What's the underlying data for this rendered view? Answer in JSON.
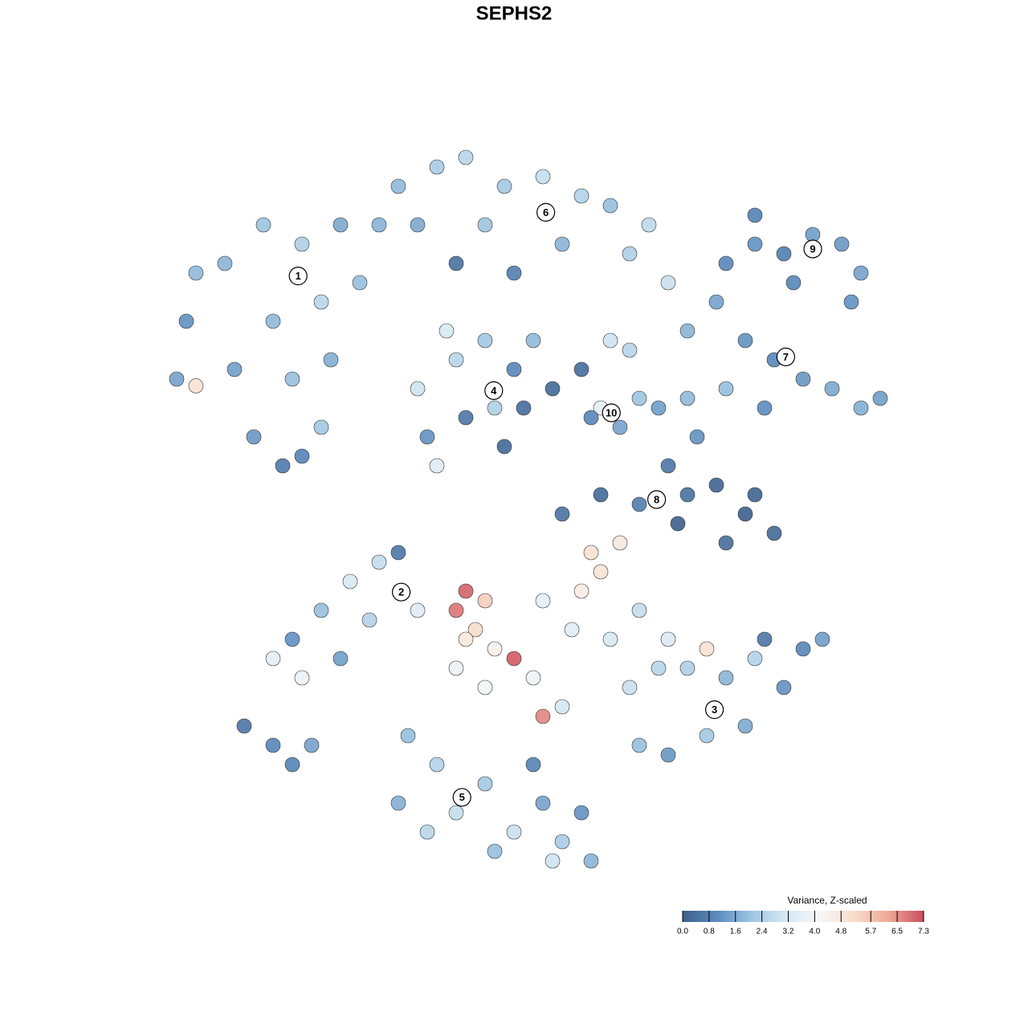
{
  "chart_data": {
    "type": "scatter",
    "title": "SEPHS2",
    "xlim": [
      -40,
      40
    ],
    "ylim": [
      -40,
      40
    ],
    "x": [
      -34,
      -30,
      -26,
      -22,
      -18,
      -20,
      -25,
      -29,
      -23,
      -19,
      -27,
      -22,
      -20,
      -35,
      -33,
      -16,
      -14,
      -24,
      -33,
      -12,
      -8,
      -5,
      -1,
      3,
      7,
      10,
      14,
      -10,
      -3,
      5,
      12,
      0,
      -6,
      16,
      -10,
      -6,
      -3,
      0,
      -2,
      -5,
      -9,
      -1,
      -8,
      1,
      -7,
      2,
      4,
      7,
      10,
      12,
      9,
      11,
      13,
      8,
      18,
      21,
      24,
      27,
      30,
      33,
      36,
      38,
      22,
      26,
      18,
      22,
      25,
      28,
      31,
      34,
      36,
      35,
      29,
      25,
      5,
      9,
      13,
      16,
      19,
      21,
      24,
      27,
      22,
      18,
      25,
      15,
      17,
      -14,
      -17,
      -20,
      -23,
      -25,
      -22,
      -18,
      -15,
      -12,
      -10,
      -28,
      -25,
      -23,
      -21,
      -5,
      -6,
      -4,
      -3,
      -5,
      -2,
      0,
      8,
      9,
      7,
      11,
      3,
      6,
      10,
      13,
      16,
      2,
      5,
      3,
      -3,
      -6,
      12,
      15,
      18,
      22,
      26,
      30,
      32,
      28,
      24,
      20,
      16,
      13,
      25,
      20,
      -11,
      -8,
      -12,
      -6,
      -3,
      0,
      3,
      5,
      -2,
      7,
      -9,
      2,
      8,
      4
    ],
    "y": [
      20,
      26,
      30,
      28,
      30,
      22,
      20,
      15,
      14,
      16,
      8,
      6,
      9,
      14,
      25,
      24,
      30,
      5,
      13.3,
      34,
      36,
      37,
      34,
      35,
      33,
      32,
      30,
      30,
      30,
      28,
      27,
      25,
      26,
      24,
      13,
      16,
      18,
      15,
      11,
      10,
      8,
      7,
      5,
      11,
      19,
      18,
      13,
      15,
      18,
      17,
      11,
      9,
      12,
      10,
      19,
      22,
      18,
      16,
      14,
      13,
      11,
      12,
      13,
      11,
      12,
      26,
      28,
      27,
      29,
      28,
      25,
      22,
      24,
      31,
      0,
      2,
      1,
      5,
      8,
      3,
      0,
      -2,
      -3,
      2,
      2,
      11,
      -1,
      -5,
      -7,
      -10,
      -13,
      -15,
      -17,
      -15,
      -11,
      -4,
      -10,
      -22,
      -24,
      -26,
      -24,
      -8,
      -10,
      -12,
      -9,
      -13,
      -14,
      -15,
      -4,
      -6,
      -8,
      -3,
      -9,
      -12,
      -13,
      -10,
      -13,
      -17,
      -20,
      -21,
      -18,
      -16,
      -18,
      -16,
      -16,
      -17,
      -13,
      -14,
      -13,
      -18,
      -22,
      -23,
      -25,
      -24,
      -15,
      -14,
      -23,
      -26,
      -30,
      -31,
      -28,
      -33,
      -30,
      -34,
      -35,
      -31,
      -33,
      -26,
      -36,
      -36
    ],
    "values": [
      1.2,
      1.8,
      2.1,
      2.4,
      1.6,
      2.6,
      1.9,
      1.4,
      2.0,
      1.7,
      1.3,
      0.9,
      2.2,
      1.5,
      1.9,
      2.0,
      1.8,
      0.7,
      5.0,
      1.9,
      2.3,
      2.6,
      2.2,
      2.8,
      2.5,
      2.0,
      2.7,
      1.6,
      2.1,
      1.8,
      2.4,
      0.8,
      0.5,
      2.9,
      3.0,
      2.6,
      2.2,
      1.0,
      2.4,
      0.6,
      1.2,
      0.3,
      3.4,
      0.4,
      3.2,
      1.9,
      0.3,
      0.4,
      3.0,
      2.6,
      3.6,
      1.5,
      2.1,
      1.0,
      1.8,
      1.5,
      1.2,
      1.0,
      1.3,
      1.6,
      1.7,
      1.4,
      2.0,
      1.1,
      1.9,
      1.0,
      1.2,
      0.8,
      1.4,
      1.3,
      1.5,
      1.2,
      1.0,
      0.9,
      0.5,
      0.3,
      0.8,
      0.6,
      1.2,
      0.2,
      0.1,
      0.3,
      0.4,
      0.5,
      0.2,
      1.4,
      0.1,
      2.8,
      3.2,
      2.0,
      1.2,
      3.6,
      3.8,
      1.4,
      2.5,
      0.6,
      3.4,
      0.6,
      1.0,
      0.9,
      1.5,
      7.0,
      6.8,
      5.2,
      5.5,
      4.8,
      4.4,
      7.1,
      5.0,
      4.9,
      4.6,
      4.7,
      3.6,
      3.5,
      3.2,
      2.8,
      3.3,
      3.9,
      3.1,
      6.6,
      4.0,
      3.8,
      2.9,
      2.6,
      2.4,
      1.8,
      0.6,
      1.0,
      1.4,
      1.2,
      1.6,
      2.2,
      1.3,
      2.0,
      2.5,
      5.0,
      2.0,
      2.5,
      1.7,
      2.8,
      2.2,
      2.9,
      1.5,
      2.3,
      2.0,
      1.2,
      2.6,
      0.9,
      1.8,
      3.0
    ],
    "annotations": [
      {
        "text": "1",
        "x": -22.4,
        "y": 24.7
      },
      {
        "text": "2",
        "x": -11.7,
        "y": -8.1
      },
      {
        "text": "3",
        "x": 20.8,
        "y": -20.3
      },
      {
        "text": "4",
        "x": -2.1,
        "y": 12.8
      },
      {
        "text": "5",
        "x": -5.4,
        "y": -29.4
      },
      {
        "text": "6",
        "x": 3.3,
        "y": 31.3
      },
      {
        "text": "7",
        "x": 28.2,
        "y": 16.3
      },
      {
        "text": "8",
        "x": 14.8,
        "y": 1.5
      },
      {
        "text": "9",
        "x": 31,
        "y": 27.5
      },
      {
        "text": "10",
        "x": 10.1,
        "y": 10.5
      }
    ],
    "colorbar": {
      "title": "Variance, Z-scaled",
      "clim": [
        0,
        7.3
      ],
      "colors": [
        "#3e5f8a",
        "#5b8bbd",
        "#9ec5e1",
        "#d6e8f3",
        "#f7f7f7",
        "#f9dccb",
        "#eea795",
        "#cc4c5c"
      ],
      "ticks": [
        {
          "value": 0,
          "label": "0.0"
        },
        {
          "value": 0.8,
          "label": "0.8"
        },
        {
          "value": 1.6,
          "label": "1.6"
        },
        {
          "value": 2.4,
          "label": "2.4"
        },
        {
          "value": 3.2,
          "label": "3.2"
        },
        {
          "value": 4.0,
          "label": "4.0"
        },
        {
          "value": 4.8,
          "label": "4.8"
        },
        {
          "value": 5.7,
          "label": "5.7"
        },
        {
          "value": 6.5,
          "label": "6.5"
        },
        {
          "value": 7.3,
          "label": "7.3"
        }
      ]
    }
  }
}
